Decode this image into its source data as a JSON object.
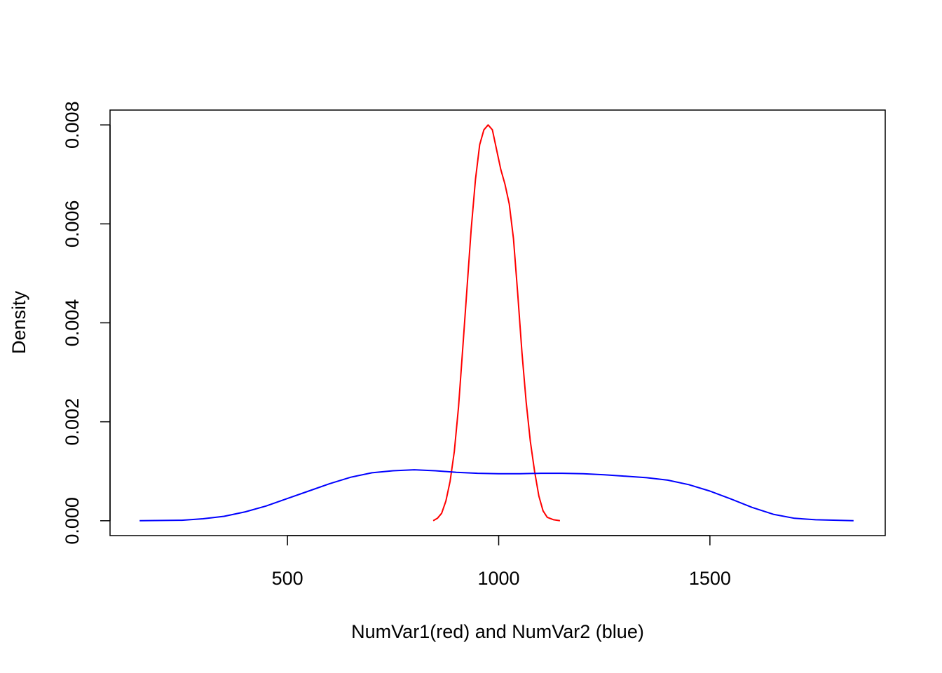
{
  "chart_data": {
    "type": "line",
    "title": "",
    "xlabel": "NumVar1(red) and NumVar2 (blue)",
    "ylabel": "Density",
    "xlim": [
      80,
      1915
    ],
    "ylim": [
      -0.0003,
      0.0083
    ],
    "x_ticks": [
      500,
      1000,
      1500
    ],
    "x_tick_labels": [
      "500",
      "1000",
      "1500"
    ],
    "y_ticks": [
      0,
      0.002,
      0.004,
      0.006,
      0.008
    ],
    "y_tick_labels": [
      "0.000",
      "0.002",
      "0.004",
      "0.006",
      "0.008"
    ],
    "grid": false,
    "legend": "none",
    "series": [
      {
        "color": "#ff0000",
        "points": [
          [
            845,
            0.0
          ],
          [
            855,
            5e-05
          ],
          [
            865,
            0.00015
          ],
          [
            875,
            0.0004
          ],
          [
            885,
            0.0008
          ],
          [
            895,
            0.0014
          ],
          [
            905,
            0.0023
          ],
          [
            915,
            0.0035
          ],
          [
            925,
            0.0047
          ],
          [
            935,
            0.0059
          ],
          [
            945,
            0.0069
          ],
          [
            955,
            0.0076
          ],
          [
            965,
            0.0079
          ],
          [
            975,
            0.008
          ],
          [
            985,
            0.0079
          ],
          [
            995,
            0.0075
          ],
          [
            1005,
            0.0071
          ],
          [
            1015,
            0.0068
          ],
          [
            1025,
            0.0064
          ],
          [
            1035,
            0.0057
          ],
          [
            1045,
            0.0046
          ],
          [
            1055,
            0.0034
          ],
          [
            1065,
            0.0024
          ],
          [
            1075,
            0.0016
          ],
          [
            1085,
            0.001
          ],
          [
            1095,
            0.0005
          ],
          [
            1105,
            0.0002
          ],
          [
            1115,
            7e-05
          ],
          [
            1130,
            2e-05
          ],
          [
            1145,
            0.0
          ]
        ]
      },
      {
        "color": "#0000ff",
        "points": [
          [
            150,
            0.0
          ],
          [
            250,
            1e-05
          ],
          [
            300,
            4e-05
          ],
          [
            350,
            9e-05
          ],
          [
            400,
            0.00018
          ],
          [
            450,
            0.0003
          ],
          [
            500,
            0.00045
          ],
          [
            550,
            0.0006
          ],
          [
            600,
            0.00075
          ],
          [
            650,
            0.00088
          ],
          [
            700,
            0.00097
          ],
          [
            750,
            0.00101
          ],
          [
            800,
            0.00103
          ],
          [
            850,
            0.00101
          ],
          [
            900,
            0.00098
          ],
          [
            950,
            0.00096
          ],
          [
            1000,
            0.00095
          ],
          [
            1050,
            0.00095
          ],
          [
            1100,
            0.00096
          ],
          [
            1150,
            0.00096
          ],
          [
            1200,
            0.00095
          ],
          [
            1250,
            0.00093
          ],
          [
            1300,
            0.0009
          ],
          [
            1350,
            0.00087
          ],
          [
            1400,
            0.00082
          ],
          [
            1450,
            0.00073
          ],
          [
            1500,
            0.0006
          ],
          [
            1550,
            0.00044
          ],
          [
            1600,
            0.00027
          ],
          [
            1650,
            0.00013
          ],
          [
            1700,
            5e-05
          ],
          [
            1750,
            2e-05
          ],
          [
            1800,
            1e-05
          ],
          [
            1840,
            0.0
          ]
        ]
      }
    ]
  }
}
